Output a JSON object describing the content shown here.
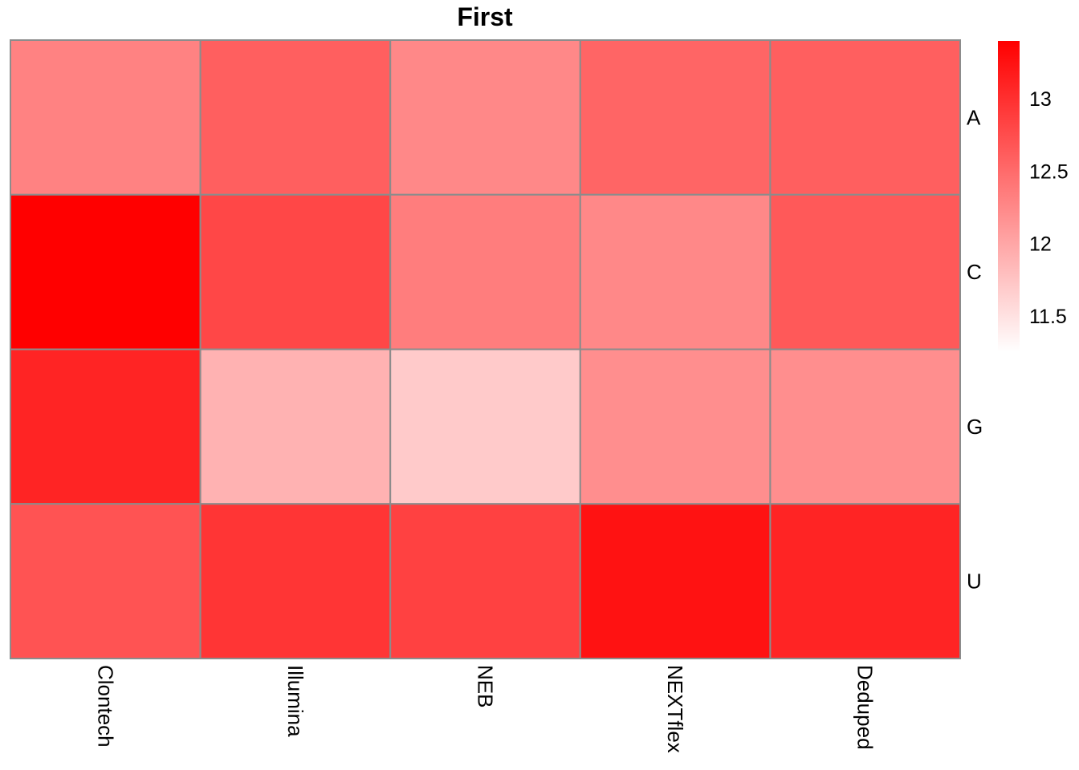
{
  "chart_data": {
    "type": "heatmap",
    "title": "First",
    "columns": [
      "Clontech",
      "Illumina",
      "NEB",
      "NEXTflex",
      "Deduped"
    ],
    "rows": [
      "A",
      "C",
      "G",
      "U"
    ],
    "values": [
      [
        12.3,
        12.6,
        12.25,
        12.55,
        12.6
      ],
      [
        13.4,
        12.8,
        12.35,
        12.25,
        12.65
      ],
      [
        13.1,
        11.9,
        11.7,
        12.2,
        12.2
      ],
      [
        12.7,
        12.95,
        12.85,
        13.25,
        13.1
      ]
    ],
    "colorbar": {
      "min": 11.25,
      "max": 13.4,
      "ticks": [
        "13",
        "12.5",
        "12",
        "11.5"
      ],
      "tick_values": [
        13,
        12.5,
        12,
        11.5
      ],
      "low_color": "#ffffff",
      "high_color": "#ff0000"
    },
    "cell_border_color": "#8c8c8c"
  }
}
